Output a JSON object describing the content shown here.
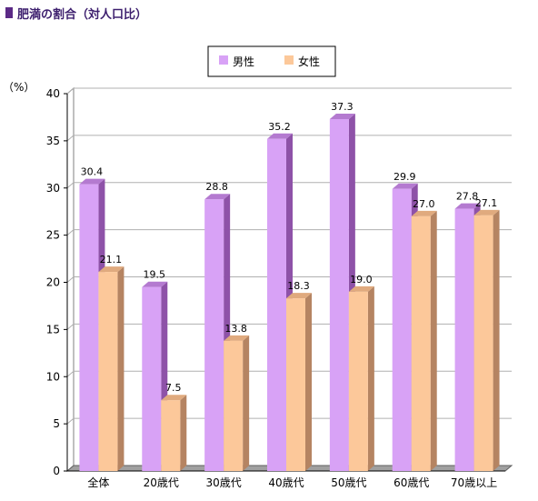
{
  "title": "肥満の割合（対人口比）",
  "colors": {
    "male": "#d8a2f6",
    "male_side": "#8e52a8",
    "male_top": "#b47ad0",
    "female": "#fcc89a",
    "female_side": "#b58462",
    "female_top": "#e0aa7e",
    "title_marker": "#5b2a86",
    "title_text": "#3d1f6e"
  },
  "chart_data": {
    "type": "bar",
    "title": "肥満の割合（対人口比）",
    "ylabel": "（%）",
    "ylim": [
      0,
      40
    ],
    "yticks": [
      0,
      5,
      10,
      15,
      20,
      25,
      30,
      35,
      40
    ],
    "grid": true,
    "legend": "top-center",
    "categories": [
      "全体",
      "20歳代",
      "30歳代",
      "40歳代",
      "50歳代",
      "60歳代",
      "70歳以上"
    ],
    "series": [
      {
        "name": "男性",
        "values": [
          30.4,
          19.5,
          28.8,
          35.2,
          37.3,
          29.9,
          27.8
        ]
      },
      {
        "name": "女性",
        "values": [
          21.1,
          7.5,
          13.8,
          18.3,
          19.0,
          27.0,
          27.1
        ]
      }
    ],
    "value_labels": [
      [
        "30.4",
        "19.5",
        "28.8",
        "35.2",
        "37.3",
        "29.9",
        "27.8"
      ],
      [
        "21.1",
        "7.5",
        "13.8",
        "18.3",
        "19.0",
        "27.0",
        "27.1"
      ]
    ]
  }
}
